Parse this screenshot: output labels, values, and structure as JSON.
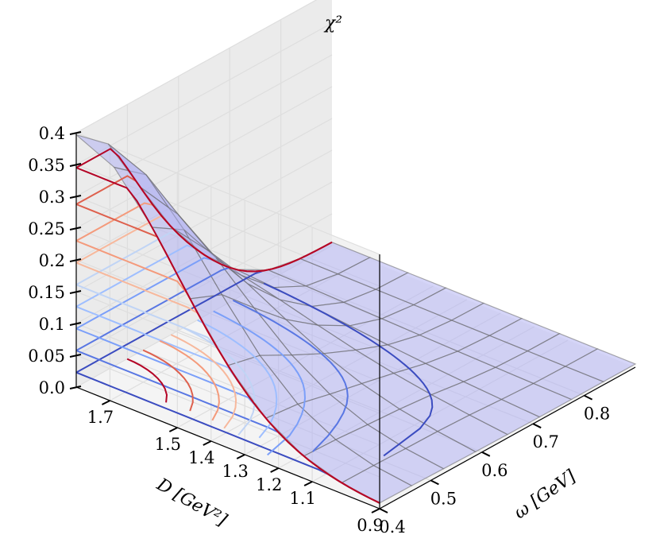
{
  "chart_data": {
    "type": "surface-3d",
    "title": "",
    "zlabel": "χ²",
    "xlabel": "ω [GeV]",
    "ylabel": "D [GeV²]",
    "z_ticks": [
      "0.0",
      "0.05",
      "0.1",
      "0.15",
      "0.2",
      "0.25",
      "0.3",
      "0.35",
      "0.4"
    ],
    "omega_ticks": [
      "0.4",
      "0.5",
      "0.6",
      "0.7",
      "0.8"
    ],
    "d_ticks": [
      "0.9",
      "1.1",
      "1.2",
      "1.3",
      "1.4",
      "1.5",
      "1.7"
    ],
    "omega_range": [
      0.4,
      0.9
    ],
    "d_range": [
      0.9,
      1.8
    ],
    "z_range": [
      0.0,
      0.4
    ],
    "surface_color": "#b3b3f2",
    "wire_color": "#666666",
    "grid": true,
    "contour_levels": [
      0.02,
      0.05,
      0.08,
      0.11,
      0.14,
      0.17,
      0.2,
      0.25,
      0.3
    ],
    "contour_colors": [
      "#3b4cc0",
      "#5977e3",
      "#7b9ff9",
      "#9ebeff",
      "#c0d4f5",
      "#f7b89c",
      "#f49a7b",
      "#de604d",
      "#b40426"
    ]
  }
}
